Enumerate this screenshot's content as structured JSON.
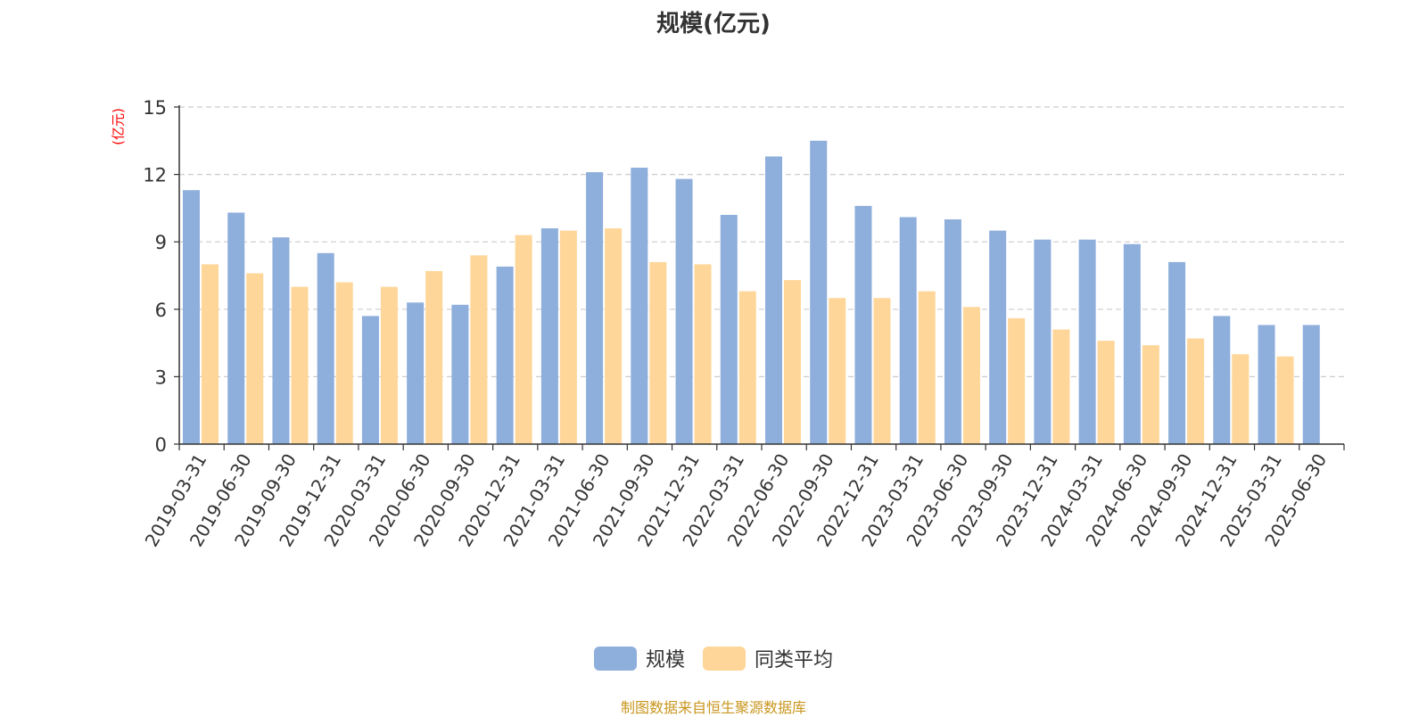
{
  "chart_data": {
    "type": "bar",
    "title": "规模(亿元)",
    "unit_label": "(亿元)",
    "categories": [
      "2019-03-31",
      "2019-06-30",
      "2019-09-30",
      "2019-12-31",
      "2020-03-31",
      "2020-06-30",
      "2020-09-30",
      "2020-12-31",
      "2021-03-31",
      "2021-06-30",
      "2021-09-30",
      "2021-12-31",
      "2022-03-31",
      "2022-06-30",
      "2022-09-30",
      "2022-12-31",
      "2023-03-31",
      "2023-06-30",
      "2023-09-30",
      "2023-12-31",
      "2024-03-31",
      "2024-06-30",
      "2024-09-30",
      "2024-12-31",
      "2025-03-31",
      "2025-06-30"
    ],
    "series": [
      {
        "name": "规模",
        "color": "#8eaedc",
        "values": [
          11.3,
          10.3,
          9.2,
          8.5,
          5.7,
          6.3,
          6.2,
          7.9,
          9.6,
          12.1,
          12.3,
          11.8,
          10.2,
          12.8,
          13.5,
          10.6,
          10.1,
          10.0,
          9.5,
          9.1,
          9.1,
          8.9,
          8.1,
          5.7,
          5.3,
          5.3
        ]
      },
      {
        "name": "同类平均",
        "color": "#ffd699",
        "values": [
          8.0,
          7.6,
          7.0,
          7.2,
          7.0,
          7.7,
          8.4,
          9.3,
          9.5,
          9.6,
          8.1,
          8.0,
          6.8,
          7.3,
          6.5,
          6.5,
          6.8,
          6.1,
          5.6,
          5.1,
          4.6,
          4.4,
          4.7,
          4.0,
          3.9,
          null
        ]
      }
    ],
    "ylim": [
      0,
      15
    ],
    "yticks": [
      0,
      3,
      6,
      9,
      12,
      15
    ],
    "grid": true,
    "legend_position": "bottom-center"
  },
  "source_text": "制图数据来自恒生聚源数据库"
}
